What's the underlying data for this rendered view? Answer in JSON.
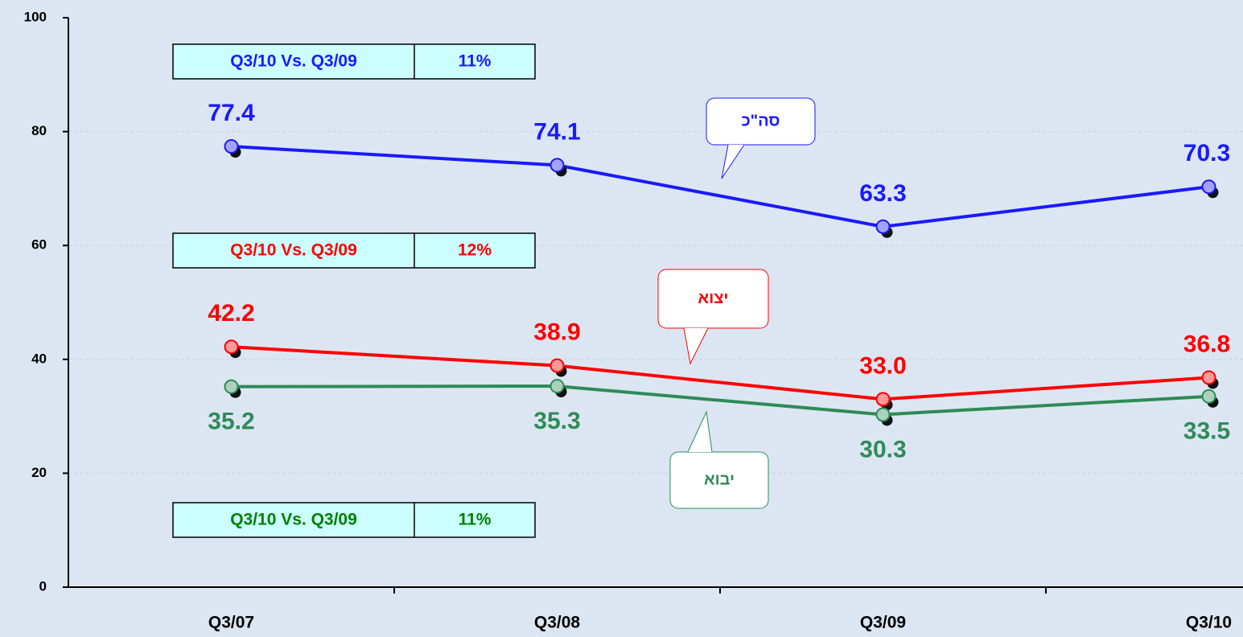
{
  "chart_data": {
    "type": "line",
    "categories": [
      "Q3/07",
      "Q3/08",
      "Q3/09",
      "Q3/10"
    ],
    "series": [
      {
        "name": "סה\"כ",
        "color": "#1a1aff",
        "values": [
          77.4,
          74.1,
          63.3,
          70.3
        ],
        "value_labels": [
          "77.4",
          "74.1",
          "63.3",
          "70.3"
        ]
      },
      {
        "name": "יצוא",
        "color": "#ff0000",
        "values": [
          42.2,
          38.9,
          33.0,
          36.8
        ],
        "value_labels": [
          "42.2",
          "38.9",
          "33.0",
          "36.8"
        ]
      },
      {
        "name": "יבוא",
        "color": "#2e8b57",
        "values": [
          35.2,
          35.3,
          30.3,
          33.5
        ],
        "value_labels": [
          "35.2",
          "35.3",
          "30.3",
          "33.5"
        ]
      }
    ],
    "ylim": [
      0,
      100
    ],
    "yticks": [
      0,
      20,
      40,
      60,
      80,
      100
    ],
    "grid": true,
    "annotations": [
      {
        "label": "Q3/10 Vs. Q3/09",
        "change": "11%",
        "color": "#1a1aff"
      },
      {
        "label": "Q3/10 Vs. Q3/09",
        "change": "12%",
        "color": "#ff0000"
      },
      {
        "label": "Q3/10 Vs. Q3/09",
        "change": "11%",
        "color": "#008000"
      }
    ]
  }
}
